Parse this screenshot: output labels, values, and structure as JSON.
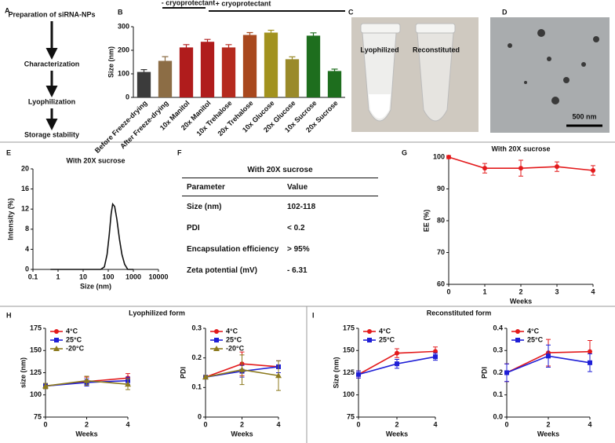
{
  "flow": {
    "label": "A",
    "steps": [
      "Preparation of siRNA-NPs",
      "Characterization",
      "Lyophilization",
      "Storage stability"
    ]
  },
  "photo": {
    "label": "C",
    "tubes": [
      "Lyophilized",
      "Reconstituted"
    ]
  },
  "tem": {
    "label": "D",
    "scale_bar": "500 nm"
  },
  "table": {
    "label": "F",
    "title": "With 20X sucrose",
    "header": [
      "Parameter",
      "Value"
    ],
    "rows": [
      [
        "Size (nm)",
        "102-118"
      ],
      [
        "PDI",
        "< 0.2"
      ],
      [
        "Encapsulation efficiency",
        "> 95%"
      ],
      [
        "Zeta potential (mV)",
        "- 6.31"
      ]
    ]
  },
  "groups": [
    {
      "label": "H",
      "title": "Lyophilized form"
    },
    {
      "label": "I",
      "title": "Reconstituted form"
    }
  ],
  "chart_data": [
    {
      "type": "bar",
      "label": "B",
      "y_label": "Size (nm)",
      "annotations": [
        "- cryoprotectant",
        "+ cryoprotectant"
      ],
      "categories": [
        "Before Freeze-drying",
        "After Freeze-drying",
        "10x Manitol",
        "20x Manitol",
        "10x Trehalose",
        "20x Trehalose",
        "10x Glucose",
        "20x Glucose",
        "10x Sucrose",
        "20x Sucrose"
      ],
      "values": [
        108,
        155,
        212,
        236,
        212,
        265,
        275,
        162,
        262,
        112
      ],
      "errors": [
        10,
        18,
        12,
        10,
        12,
        10,
        10,
        10,
        12,
        8
      ],
      "colors": [
        "#3b3b3b",
        "#8c6d45",
        "#b01c1c",
        "#b01c1c",
        "#b52a1e",
        "#a8481e",
        "#a2921e",
        "#9a8a2a",
        "#1e6e1e",
        "#1e6e1e"
      ],
      "ylim": [
        0,
        300
      ],
      "yticks": [
        0,
        100,
        200,
        300
      ]
    },
    {
      "type": "line",
      "label": "E",
      "title": "With 20X sucrose",
      "x_label": "Size (nm)",
      "y_label": "Intensity (%)",
      "xscale": "log",
      "markers": false,
      "color": "#111111",
      "x": [
        0.5,
        50,
        70,
        90,
        110,
        130,
        150,
        180,
        220,
        280,
        350,
        450,
        600,
        1000
      ],
      "values": [
        0,
        0,
        0.5,
        3,
        7,
        11,
        13,
        12.5,
        10,
        6,
        3,
        1,
        0,
        0
      ],
      "xlim": [
        0.1,
        10000
      ],
      "xticks": [
        0.1,
        1,
        10,
        100,
        1000,
        10000
      ],
      "ylim": [
        0,
        20
      ],
      "yticks": [
        0,
        4,
        8,
        12,
        16,
        20
      ]
    },
    {
      "type": "line",
      "label": "G",
      "title": "With 20X sucrose",
      "x_label": "Weeks",
      "y_label": "EE (%)",
      "markers": true,
      "color": "#e31a1c",
      "x": [
        0,
        1,
        2,
        3,
        4
      ],
      "values": [
        100,
        96.5,
        96.5,
        97,
        95.8
      ],
      "errors": [
        0.5,
        1.5,
        2.5,
        1.5,
        1.5
      ],
      "xlim": [
        0,
        4
      ],
      "xticks": [
        0,
        1,
        2,
        3,
        4
      ],
      "ylim": [
        60,
        100
      ],
      "yticks": [
        60,
        70,
        80,
        90,
        100
      ]
    },
    {
      "type": "line",
      "x_label": "Weeks",
      "y_label": "size (nm)",
      "markers": true,
      "legend": "upper left",
      "x": [
        0,
        2,
        4
      ],
      "series": [
        {
          "name": "4°C",
          "color": "#e31a1c",
          "marker": "circle",
          "values": [
            110,
            115,
            119
          ],
          "errors": [
            3,
            5,
            5
          ]
        },
        {
          "name": "25°C",
          "color": "#1f1fd6",
          "marker": "square",
          "values": [
            110,
            114,
            116
          ],
          "errors": [
            3,
            4,
            4
          ]
        },
        {
          "name": "-20°C",
          "color": "#8c7a1e",
          "marker": "triangle",
          "values": [
            110,
            116,
            112
          ],
          "errors": [
            3,
            5,
            6
          ]
        }
      ],
      "xlim": [
        0,
        4
      ],
      "xticks": [
        0,
        2,
        4
      ],
      "ylim": [
        75,
        175
      ],
      "yticks": [
        75,
        100,
        125,
        150,
        175
      ]
    },
    {
      "type": "line",
      "x_label": "Weeks",
      "y_label": "PDI",
      "markers": true,
      "legend": "upper left",
      "x": [
        0,
        2,
        4
      ],
      "series": [
        {
          "name": "4°C",
          "color": "#e31a1c",
          "marker": "circle",
          "values": [
            0.135,
            0.18,
            0.17
          ],
          "errors": [
            0.005,
            0.04,
            0.02
          ]
        },
        {
          "name": "25°C",
          "color": "#1f1fd6",
          "marker": "square",
          "values": [
            0.135,
            0.155,
            0.17
          ],
          "errors": [
            0.005,
            0.02,
            0.02
          ]
        },
        {
          "name": "-20°C",
          "color": "#8c7a1e",
          "marker": "triangle",
          "values": [
            0.135,
            0.16,
            0.14
          ],
          "errors": [
            0.005,
            0.05,
            0.05
          ]
        }
      ],
      "xlim": [
        0,
        4
      ],
      "xticks": [
        0,
        2,
        4
      ],
      "ylim": [
        0,
        0.3
      ],
      "yticks": [
        0,
        0.1,
        0.2,
        0.3
      ]
    },
    {
      "type": "line",
      "x_label": "Weeks",
      "y_label": "Size (nm)",
      "markers": true,
      "legend": "upper left",
      "x": [
        0,
        2,
        4
      ],
      "series": [
        {
          "name": "4°C",
          "color": "#e31a1c",
          "marker": "circle",
          "values": [
            123,
            147,
            149
          ],
          "errors": [
            4,
            5,
            5
          ]
        },
        {
          "name": "25°C",
          "color": "#1f1fd6",
          "marker": "square",
          "values": [
            123,
            135,
            143
          ],
          "errors": [
            4,
            5,
            4
          ]
        }
      ],
      "xlim": [
        0,
        4
      ],
      "xticks": [
        0,
        2,
        4
      ],
      "ylim": [
        75,
        175
      ],
      "yticks": [
        75,
        100,
        125,
        150,
        175
      ]
    },
    {
      "type": "line",
      "x_label": "Weeks",
      "y_label": "PDI",
      "markers": true,
      "legend": "upper left",
      "x": [
        0,
        2,
        4
      ],
      "series": [
        {
          "name": "4°C",
          "color": "#e31a1c",
          "marker": "circle",
          "values": [
            0.2,
            0.29,
            0.295
          ],
          "errors": [
            0.04,
            0.06,
            0.05
          ]
        },
        {
          "name": "25°C",
          "color": "#1f1fd6",
          "marker": "square",
          "values": [
            0.2,
            0.275,
            0.245
          ],
          "errors": [
            0.04,
            0.05,
            0.04
          ]
        }
      ],
      "xlim": [
        0,
        4
      ],
      "xticks": [
        0,
        2,
        4
      ],
      "ylim": [
        0,
        0.4
      ],
      "yticks": [
        {
          "value": 0,
          "label": "0.0"
        },
        0.1,
        0.2,
        0.3,
        0.4
      ]
    }
  ]
}
